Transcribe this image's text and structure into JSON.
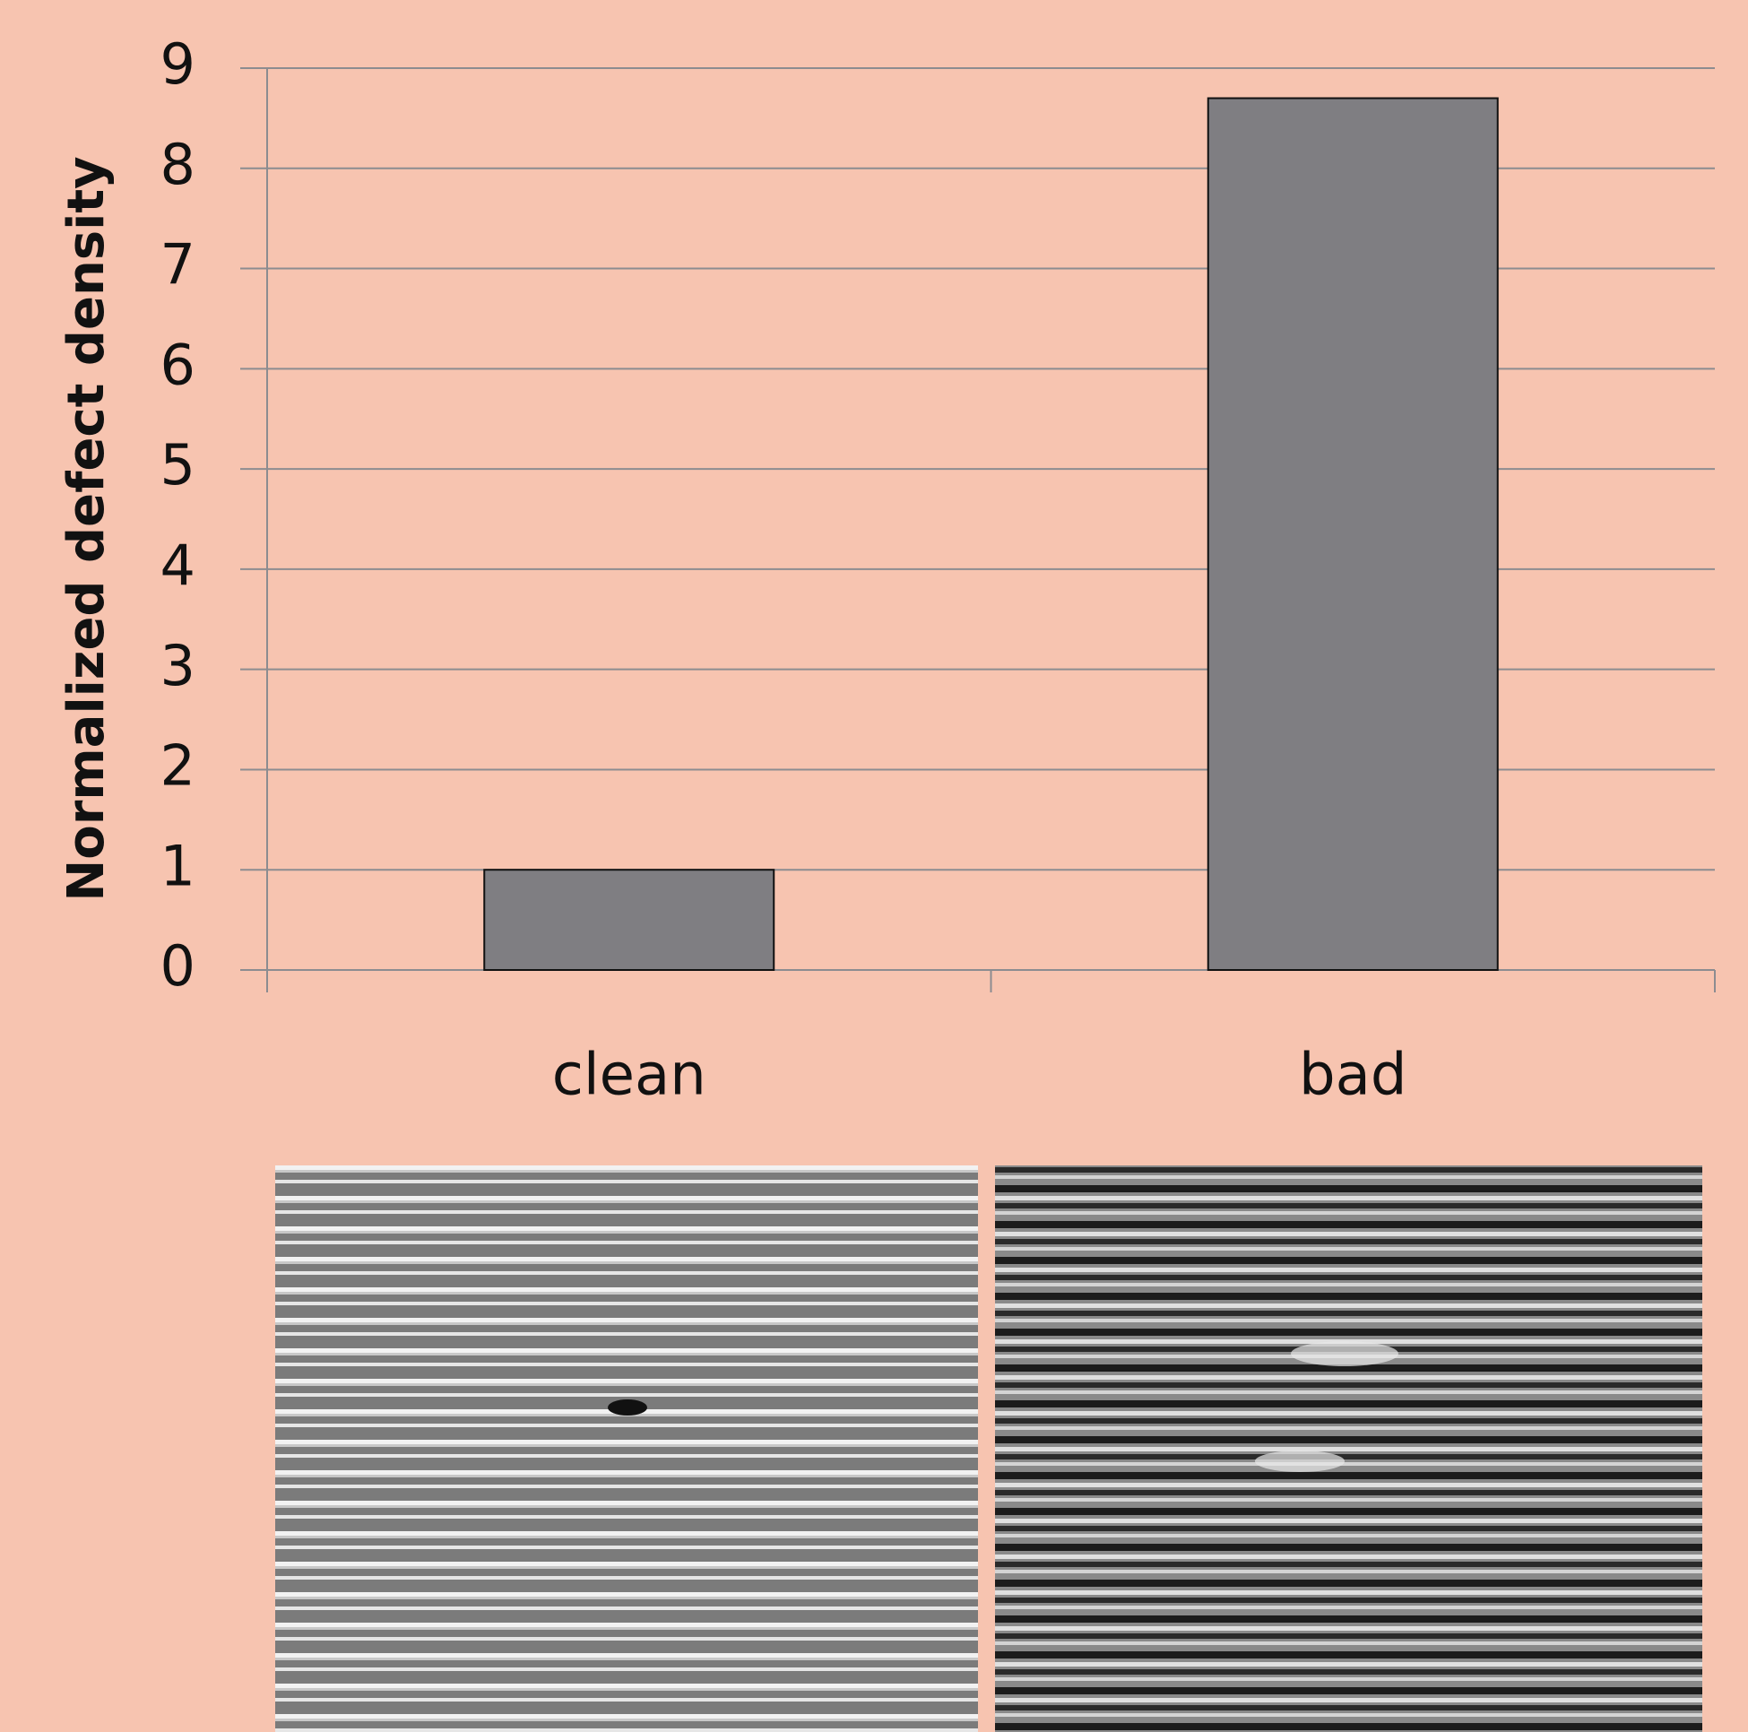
{
  "chart_data": {
    "type": "bar",
    "y_label": "Normalized defect density",
    "categories": [
      "clean",
      "bad"
    ],
    "values": [
      1,
      8.7
    ],
    "color": "#7f7e82",
    "ylim": [
      0,
      9
    ],
    "yticks": [
      0,
      1,
      2,
      3,
      4,
      5,
      6,
      7,
      8,
      9
    ],
    "grid": true
  }
}
